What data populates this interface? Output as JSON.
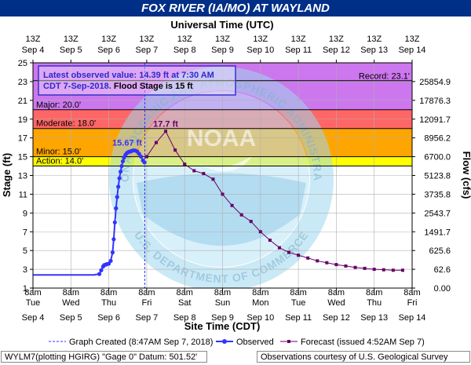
{
  "title": "FOX RIVER (IA/MO) AT WAYLAND",
  "chart_data": {
    "type": "line",
    "top_axis": {
      "label": "Universal Time (UTC)",
      "ticks": [
        {
          "hour": "13Z",
          "date": "Sep 4"
        },
        {
          "hour": "13Z",
          "date": "Sep 5"
        },
        {
          "hour": "13Z",
          "date": "Sep 6"
        },
        {
          "hour": "13Z",
          "date": "Sep 7"
        },
        {
          "hour": "13Z",
          "date": "Sep 8"
        },
        {
          "hour": "13Z",
          "date": "Sep 9"
        },
        {
          "hour": "13Z",
          "date": "Sep 10"
        },
        {
          "hour": "13Z",
          "date": "Sep 11"
        },
        {
          "hour": "13Z",
          "date": "Sep 12"
        },
        {
          "hour": "13Z",
          "date": "Sep 13"
        },
        {
          "hour": "13Z",
          "date": "Sep 14"
        }
      ]
    },
    "bottom_axis": {
      "label": "Site Time (CDT)",
      "ticks": [
        {
          "time": "8am",
          "day": "Tue",
          "date": "Sep 4"
        },
        {
          "time": "8am",
          "day": "Wed",
          "date": "Sep 5"
        },
        {
          "time": "8am",
          "day": "Thu",
          "date": "Sep 6"
        },
        {
          "time": "8am",
          "day": "Fri",
          "date": "Sep 7"
        },
        {
          "time": "8am",
          "day": "Sat",
          "date": "Sep 8"
        },
        {
          "time": "8am",
          "day": "Sun",
          "date": "Sep 9"
        },
        {
          "time": "8am",
          "day": "Mon",
          "date": "Sep 10"
        },
        {
          "time": "8am",
          "day": "Tue",
          "date": "Sep 11"
        },
        {
          "time": "8am",
          "day": "Wed",
          "date": "Sep 12"
        },
        {
          "time": "8am",
          "day": "Thu",
          "date": "Sep 13"
        },
        {
          "time": "8am",
          "day": "Fri",
          "date": "Sep 14"
        }
      ]
    },
    "x_range_days": [
      0,
      10
    ],
    "y_left": {
      "label": "Stage (ft)",
      "range": [
        1,
        25
      ],
      "ticks": [
        1,
        3,
        5,
        7,
        9,
        11,
        13,
        15,
        17,
        19,
        21,
        23,
        25
      ]
    },
    "y_right": {
      "label": "Flow (cfs)",
      "ticks": [
        {
          "stage": 1,
          "label": "0.00"
        },
        {
          "stage": 3,
          "label": "62.6"
        },
        {
          "stage": 5,
          "label": "625.6"
        },
        {
          "stage": 7,
          "label": "1491.7"
        },
        {
          "stage": 9,
          "label": "2543.7"
        },
        {
          "stage": 11,
          "label": "3735.8"
        },
        {
          "stage": 13,
          "label": "5123.8"
        },
        {
          "stage": 15,
          "label": "6700.0"
        },
        {
          "stage": 17,
          "label": "8956.2"
        },
        {
          "stage": 19,
          "label": "12091.7"
        },
        {
          "stage": 21,
          "label": "17876.3"
        },
        {
          "stage": 23,
          "label": "25854.9"
        }
      ]
    },
    "flood_categories": [
      {
        "label": "Action: 14.0'",
        "from": 14,
        "to": 15,
        "color": "#ffff00"
      },
      {
        "label": "Minor: 15.0'",
        "from": 15,
        "to": 18,
        "color": "#ffa500"
      },
      {
        "label": "Moderate: 18.0'",
        "from": 18,
        "to": 20,
        "color": "#ff6666"
      },
      {
        "label": "Major: 20.0'",
        "from": 20,
        "to": 25,
        "color": "#cc77ee"
      }
    ],
    "record": {
      "label": "Record: 23.1'",
      "value": 23.1
    },
    "info_box": {
      "line1": "Latest observed value: 14.39 ft at 7:30 AM",
      "line2_blue": "CDT 7-Sep-2018.",
      "line2_black": " Flood Stage is 15 ft"
    },
    "created_day": 2.95,
    "annotations": {
      "observed_peak": "15.67 ft",
      "forecast_peak": "17.7 ft"
    },
    "series": [
      {
        "name": "Observed",
        "color": "#3333ff",
        "x": [
          0,
          0.2,
          0.4,
          0.6,
          0.8,
          1.0,
          1.2,
          1.4,
          1.6,
          1.75,
          1.8,
          1.85,
          1.88,
          1.92,
          1.95,
          2.0,
          2.05,
          2.1,
          2.13,
          2.16,
          2.19,
          2.22,
          2.25,
          2.28,
          2.31,
          2.34,
          2.37,
          2.4,
          2.44,
          2.48,
          2.52,
          2.56,
          2.6,
          2.65,
          2.7,
          2.75,
          2.8,
          2.85,
          2.9,
          2.94
        ],
        "y": [
          2.4,
          2.4,
          2.4,
          2.4,
          2.4,
          2.4,
          2.4,
          2.4,
          2.4,
          2.5,
          2.9,
          3.3,
          3.45,
          3.5,
          3.55,
          3.6,
          3.9,
          4.8,
          6.2,
          8.0,
          9.5,
          10.7,
          11.8,
          12.7,
          13.4,
          14.0,
          14.5,
          14.9,
          15.2,
          15.4,
          15.5,
          15.55,
          15.6,
          15.67,
          15.65,
          15.55,
          15.3,
          15.0,
          14.6,
          14.39
        ]
      },
      {
        "name": "Forecast (issued 4:52AM Sep 7)",
        "color": "#660066",
        "x": [
          3.0,
          3.25,
          3.5,
          3.75,
          4.0,
          4.25,
          4.5,
          4.75,
          5.0,
          5.25,
          5.5,
          5.75,
          6.0,
          6.25,
          6.5,
          6.75,
          7.0,
          7.25,
          7.5,
          7.75,
          8.0,
          8.25,
          8.5,
          8.75,
          9.0,
          9.25,
          9.5,
          9.75
        ],
        "y": [
          15.0,
          16.5,
          17.7,
          15.7,
          14.2,
          13.5,
          13.2,
          12.6,
          11.0,
          9.8,
          8.8,
          8.1,
          7.0,
          6.1,
          5.3,
          4.8,
          4.5,
          4.2,
          3.9,
          3.7,
          3.5,
          3.35,
          3.2,
          3.1,
          3.0,
          2.95,
          2.9,
          2.9
        ]
      }
    ]
  },
  "legend": {
    "graph_created": "Graph Created (8:47AM Sep 7, 2018)",
    "observed": "Observed",
    "forecast": "Forecast (issued 4:52AM Sep 7)"
  },
  "footer": {
    "left": "WYLM7(plotting HGIRG) \"Gage 0\" Datum: 501.52'",
    "right": "Observations courtesy of U.S. Geological Survey"
  },
  "watermark": {
    "top_text": "NATIONAL OCEANIC AND ATMOSPHERIC ADMINISTRATION",
    "bottom_text": "U.S. DEPARTMENT OF COMMERCE",
    "center": "NOAA"
  },
  "colors": {
    "header_bg": "#002f87",
    "observed": "#3333ff",
    "forecast": "#660066"
  }
}
